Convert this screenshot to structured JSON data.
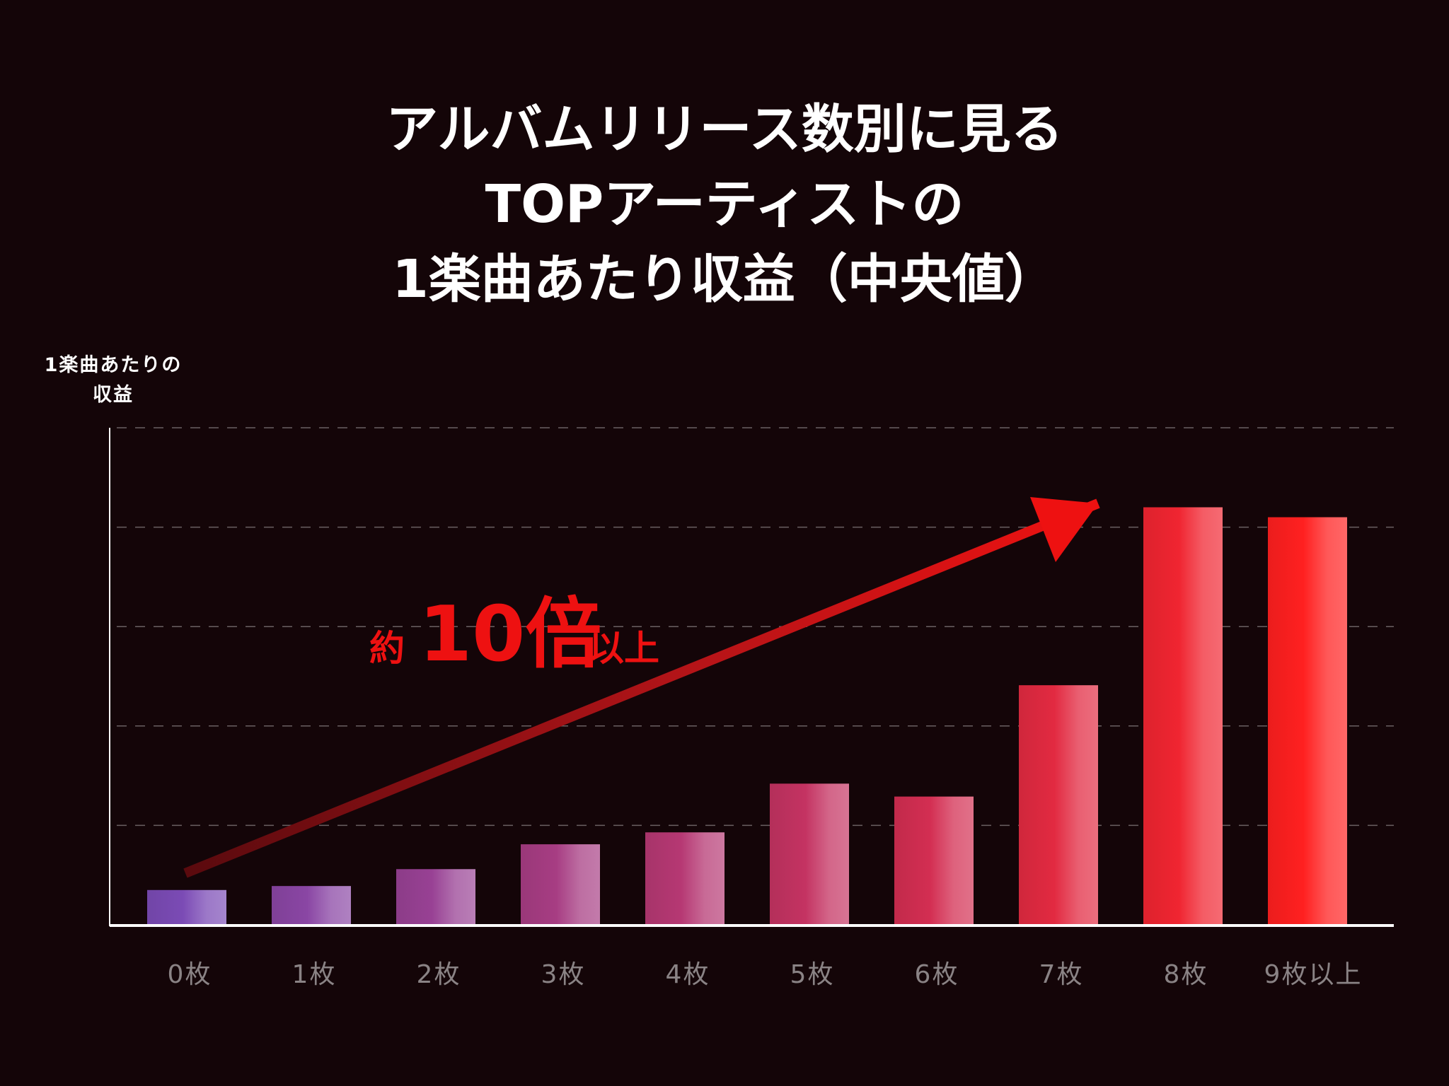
{
  "title_lines": [
    "アルバムリリース数別に見る",
    "TOPアーティストの",
    "1楽曲あたり収益（中央値）"
  ],
  "ylabel_lines": [
    "1楽曲あたりの",
    "収益"
  ],
  "annotation": {
    "prefix": "約",
    "number": "10倍",
    "suffix": "以上"
  },
  "colors": {
    "background": "#140508",
    "arrow": "#e01010",
    "bar_start": "#7b4bb5",
    "bar_end": "#ff2020"
  },
  "chart_data": {
    "type": "bar",
    "categories": [
      "0枚",
      "1枚",
      "2枚",
      "3枚",
      "4枚",
      "5枚",
      "6枚",
      "7枚",
      "8枚",
      "9枚以上"
    ],
    "values": [
      0.35,
      0.39,
      0.56,
      0.81,
      0.93,
      1.42,
      1.29,
      2.41,
      4.2,
      4.1
    ],
    "ylim": [
      0,
      5
    ],
    "grid": true,
    "axis_ticks_labeled": false
  }
}
